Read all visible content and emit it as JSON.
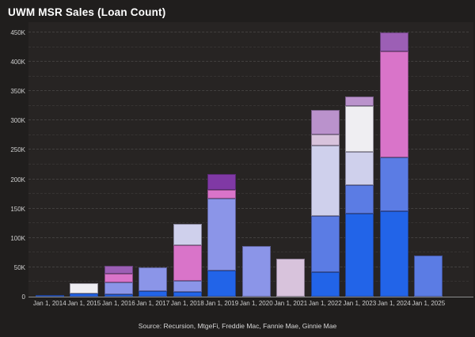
{
  "title": "UWM MSR Sales (Loan Count)",
  "source": "Source: Recursion, MtgeFi, Freddie Mac, Fannie Mae, Ginnie Mae",
  "chart_data": {
    "type": "bar",
    "stacked": true,
    "title": "UWM MSR Sales (Loan Count)",
    "xlabel": "",
    "ylabel": "",
    "legend": "none",
    "grid": "horizontal dashed, minor every 25K, major every 50K",
    "y_axis": {
      "min": 0,
      "max": 450000,
      "major_step": 50000,
      "minor_step": 25000,
      "tick_labels": [
        "0",
        "50K",
        "100K",
        "150K",
        "200K",
        "250K",
        "300K",
        "350K",
        "400K",
        "450K"
      ]
    },
    "categories": [
      "Jan 1, 2014",
      "Jan 1, 2015",
      "Jan 1, 2016",
      "Jan 1, 2017",
      "Jan 1, 2018",
      "Jan 1, 2019",
      "Jan 1, 2020",
      "Jan 1, 2021",
      "Jan 1, 2022",
      "Jan 1, 2023",
      "Jan 1, 2024",
      "Jan 1, 2025"
    ],
    "palette": {
      "blue": "#2264e8",
      "cornflower": "#5b7ce4",
      "periwinkle": "#8b95e8",
      "lavender": "#cfd0ec",
      "white": "#efeef2",
      "pink": "#d974c9",
      "thistle": "#d8c3dc",
      "orchid": "#ba92cc",
      "purple": "#9c5fb5",
      "purple_dark": "#8039a5"
    },
    "bars": [
      {
        "category": "Jan 1, 2014",
        "total": 3000,
        "segments": [
          {
            "color": "blue",
            "value": 3000
          }
        ]
      },
      {
        "category": "Jan 1, 2015",
        "total": 23000,
        "segments": [
          {
            "color": "blue",
            "value": 6000
          },
          {
            "color": "white",
            "value": 17000
          }
        ]
      },
      {
        "category": "Jan 1, 2016",
        "total": 52000,
        "segments": [
          {
            "color": "blue",
            "value": 4000
          },
          {
            "color": "periwinkle",
            "value": 20000
          },
          {
            "color": "pink",
            "value": 15000
          },
          {
            "color": "purple",
            "value": 13000
          }
        ]
      },
      {
        "category": "Jan 1, 2017",
        "total": 50000,
        "segments": [
          {
            "color": "blue",
            "value": 10000
          },
          {
            "color": "periwinkle",
            "value": 40000
          }
        ]
      },
      {
        "category": "Jan 1, 2018",
        "total": 124000,
        "segments": [
          {
            "color": "blue",
            "value": 8000
          },
          {
            "color": "periwinkle",
            "value": 19000
          },
          {
            "color": "pink",
            "value": 61000
          },
          {
            "color": "lavender",
            "value": 36000
          }
        ]
      },
      {
        "category": "Jan 1, 2019",
        "total": 209000,
        "segments": [
          {
            "color": "blue",
            "value": 44000
          },
          {
            "color": "periwinkle",
            "value": 123000
          },
          {
            "color": "pink",
            "value": 15000
          },
          {
            "color": "purple_dark",
            "value": 27000
          }
        ]
      },
      {
        "category": "Jan 1, 2020",
        "total": 86000,
        "segments": [
          {
            "color": "periwinkle",
            "value": 86000
          }
        ]
      },
      {
        "category": "Jan 1, 2021",
        "total": 65000,
        "segments": [
          {
            "color": "thistle",
            "value": 65000
          }
        ]
      },
      {
        "category": "Jan 1, 2022",
        "total": 318000,
        "segments": [
          {
            "color": "blue",
            "value": 42000
          },
          {
            "color": "cornflower",
            "value": 96000
          },
          {
            "color": "lavender",
            "value": 120000
          },
          {
            "color": "thistle",
            "value": 18000
          },
          {
            "color": "orchid",
            "value": 42000
          }
        ]
      },
      {
        "category": "Jan 1, 2023",
        "total": 341000,
        "segments": [
          {
            "color": "blue",
            "value": 141000
          },
          {
            "color": "cornflower",
            "value": 49000
          },
          {
            "color": "lavender",
            "value": 56000
          },
          {
            "color": "white",
            "value": 79000
          },
          {
            "color": "orchid",
            "value": 16000
          }
        ]
      },
      {
        "category": "Jan 1, 2024",
        "total": 450000,
        "segments": [
          {
            "color": "blue",
            "value": 146000
          },
          {
            "color": "cornflower",
            "value": 91000
          },
          {
            "color": "pink",
            "value": 181000
          },
          {
            "color": "purple",
            "value": 32000
          }
        ]
      },
      {
        "category": "Jan 1, 2025",
        "total": 70000,
        "segments": [
          {
            "color": "cornflower",
            "value": 70000
          }
        ]
      }
    ]
  }
}
